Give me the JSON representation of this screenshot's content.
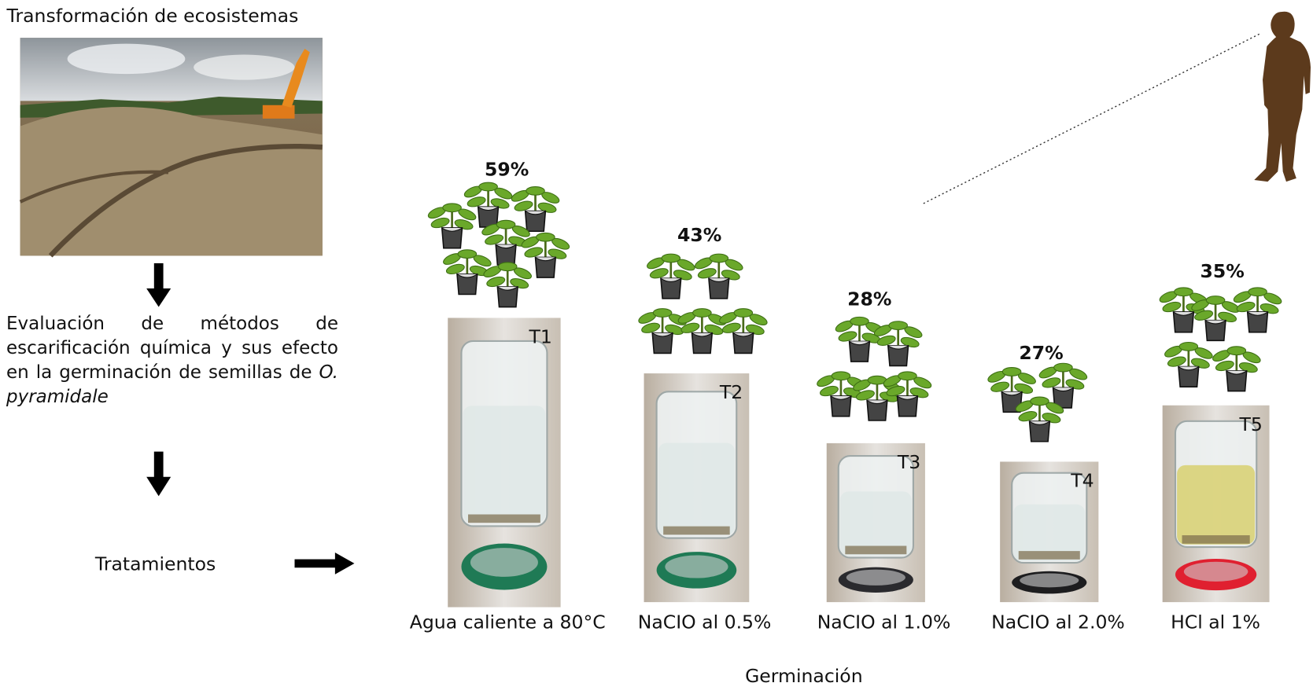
{
  "header": {
    "title": "Transformación de ecosistemas"
  },
  "description": {
    "text": "Evaluación de métodos de escarificación química  y sus efecto en la germinación de semillas de",
    "species": "O. pyramidale"
  },
  "treatments_label": "Tratamientos",
  "treatments": [
    {
      "tag": "T1",
      "percent": "59%",
      "label": "Agua caliente a 80°C"
    },
    {
      "tag": "T2",
      "percent": "43%",
      "label": "NaCIO al 0.5%"
    },
    {
      "tag": "T3",
      "percent": "28%",
      "label": "NaCIO al 1.0%"
    },
    {
      "tag": "T4",
      "percent": "27%",
      "label": "NaCIO al 2.0%"
    },
    {
      "tag": "T5",
      "percent": "35%",
      "label": "HCl al 1%"
    }
  ],
  "footer": "Germinación"
}
